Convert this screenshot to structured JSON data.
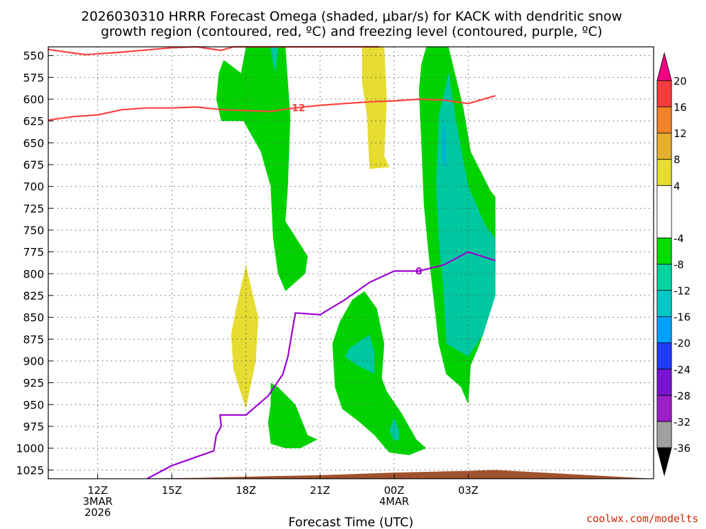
{
  "title_line1": "2026030310 HRRR Forecast Omega (shaded, μbar/s) for KACK with dendritic snow",
  "title_line2": "growth region (contoured, red, ºC) and freezing level (contoured, purple, ºC)",
  "credit": "coolwx.com/modelts",
  "chart_data": {
    "type": "contour",
    "title": "2026030310 HRRR Forecast Omega (shaded, μbar/s) for KACK with dendritic snow growth region (contoured, red, ºC) and freezing level (contoured, purple, ºC)",
    "xlabel": "Forecast Time (UTC)",
    "ylabel": "",
    "x_unit": "hours since 2026-03-03 10Z",
    "xlim": [
      10,
      34.5
    ],
    "y_unit": "hPa",
    "ylim": [
      1035,
      540
    ],
    "y_ticks": [
      550,
      575,
      600,
      625,
      650,
      675,
      700,
      725,
      750,
      775,
      800,
      825,
      850,
      875,
      900,
      925,
      950,
      975,
      1000,
      1025
    ],
    "y_tick_labels": [
      "550",
      "575",
      "600",
      "625",
      "650",
      "675",
      "700",
      "725",
      "750",
      "775",
      "800",
      "825",
      "850",
      "875",
      "900",
      "925",
      "950",
      "975",
      "1000",
      "1025"
    ],
    "x_ticks": [
      {
        "x": 12,
        "lines": [
          "12Z",
          "3MAR",
          "2026"
        ]
      },
      {
        "x": 15,
        "lines": [
          "15Z"
        ]
      },
      {
        "x": 18,
        "lines": [
          "18Z"
        ]
      },
      {
        "x": 21,
        "lines": [
          "21Z"
        ]
      },
      {
        "x": 24,
        "lines": [
          "00Z",
          "4MAR"
        ]
      },
      {
        "x": 27,
        "lines": [
          "03Z"
        ]
      }
    ],
    "grid": true,
    "colorbar": {
      "placement": "right",
      "levels": [
        -36,
        -32,
        -28,
        -24,
        -20,
        -16,
        -12,
        -8,
        -4,
        4,
        8,
        12,
        16,
        20
      ],
      "level_labels": [
        "-36",
        "-32",
        "-28",
        "-24",
        "-20",
        "-16",
        "-12",
        "-8",
        "-4",
        "4",
        "8",
        "12",
        "16",
        "20"
      ],
      "colors": [
        "#000000",
        "#a0a0a0",
        "#9b1ec8",
        "#7814d2",
        "#1e3cff",
        "#00a0ff",
        "#00dcb4",
        "#00d2a0",
        "#00dc00",
        "#ffffff",
        "#e6dc32",
        "#e6af2d",
        "#f08228",
        "#fa3c3c",
        "#f00082"
      ],
      "bands": [
        {
          "from": -36,
          "to": -32,
          "color": "#a0a0a0"
        },
        {
          "from": -32,
          "to": -28,
          "color": "#9b1ec8"
        },
        {
          "from": -28,
          "to": -24,
          "color": "#7814d2"
        },
        {
          "from": -24,
          "to": -20,
          "color": "#1e3cff"
        },
        {
          "from": -20,
          "to": -16,
          "color": "#00a0ff"
        },
        {
          "from": -16,
          "to": -12,
          "color": "#00c8c8"
        },
        {
          "from": -12,
          "to": -8,
          "color": "#00d2a0"
        },
        {
          "from": -8,
          "to": -4,
          "color": "#00dc00"
        },
        {
          "from": -4,
          "to": 4,
          "color": "#ffffff"
        },
        {
          "from": 4,
          "to": 8,
          "color": "#e6dc32"
        },
        {
          "from": 8,
          "to": 12,
          "color": "#e6af2d"
        },
        {
          "from": 12,
          "to": 16,
          "color": "#f08228"
        },
        {
          "from": 16,
          "to": 20,
          "color": "#fa3c3c"
        }
      ],
      "under_color": "#000000",
      "over_color": "#f00082"
    },
    "shaded_regions": [
      {
        "value_band": "-8 to -4",
        "color": "#00d200",
        "points": [
          [
            18.0,
            540
          ],
          [
            19.6,
            540
          ],
          [
            19.8,
            620
          ],
          [
            19.7,
            700
          ],
          [
            19.6,
            740
          ],
          [
            20.5,
            780
          ],
          [
            20.4,
            800
          ],
          [
            19.6,
            820
          ],
          [
            19.3,
            800
          ],
          [
            19.1,
            760
          ],
          [
            19.0,
            700
          ],
          [
            18.6,
            660
          ],
          [
            17.9,
            625
          ],
          [
            17.0,
            625
          ],
          [
            16.8,
            600
          ],
          [
            16.9,
            570
          ],
          [
            17.1,
            555
          ],
          [
            17.8,
            570
          ]
        ]
      },
      {
        "value_band": "-12 to -8",
        "color": "#00c8a0",
        "points": [
          [
            19.0,
            540
          ],
          [
            19.3,
            540
          ],
          [
            19.2,
            570
          ],
          [
            19.1,
            560
          ]
        ]
      },
      {
        "value_band": "-8 to -4",
        "color": "#00d200",
        "points": [
          [
            19.0,
            925
          ],
          [
            19.3,
            930
          ],
          [
            20.0,
            950
          ],
          [
            20.5,
            985
          ],
          [
            20.9,
            990
          ],
          [
            20.2,
            1000
          ],
          [
            19.6,
            1000
          ],
          [
            19.0,
            995
          ],
          [
            18.9,
            970
          ],
          [
            19.0,
            950
          ]
        ]
      },
      {
        "value_band": "-8 to -4",
        "color": "#00d200",
        "points": [
          [
            22.8,
            820
          ],
          [
            23.3,
            840
          ],
          [
            23.6,
            880
          ],
          [
            23.5,
            920
          ],
          [
            23.7,
            935
          ],
          [
            24.3,
            960
          ],
          [
            24.9,
            990
          ],
          [
            25.3,
            1000
          ],
          [
            24.6,
            1008
          ],
          [
            23.8,
            1005
          ],
          [
            23.2,
            985
          ],
          [
            22.6,
            970
          ],
          [
            21.9,
            955
          ],
          [
            21.6,
            930
          ],
          [
            21.5,
            880
          ],
          [
            21.8,
            855
          ],
          [
            22.3,
            830
          ]
        ]
      },
      {
        "value_band": "-12 to -8",
        "color": "#00c8a0",
        "points": [
          [
            22.2,
            885
          ],
          [
            23.0,
            870
          ],
          [
            23.2,
            890
          ],
          [
            23.2,
            915
          ],
          [
            22.5,
            905
          ],
          [
            22.0,
            895
          ]
        ]
      },
      {
        "value_band": "-12 to -8",
        "color": "#00c8a0",
        "points": [
          [
            24.0,
            965
          ],
          [
            24.2,
            980
          ],
          [
            24.2,
            990
          ],
          [
            24.0,
            992
          ],
          [
            23.8,
            980
          ]
        ]
      },
      {
        "value_band": "-8 to -4",
        "color": "#00d200",
        "points": [
          [
            25.3,
            540
          ],
          [
            26.2,
            540
          ],
          [
            26.8,
            610
          ],
          [
            27.1,
            660
          ],
          [
            27.9,
            705
          ],
          [
            28.1,
            712
          ],
          [
            28.1,
            800
          ],
          [
            27.6,
            870
          ],
          [
            27.4,
            885
          ],
          [
            27.1,
            905
          ],
          [
            27.0,
            950
          ],
          [
            26.7,
            930
          ],
          [
            26.1,
            915
          ],
          [
            25.8,
            880
          ],
          [
            25.6,
            830
          ],
          [
            25.4,
            780
          ],
          [
            25.2,
            720
          ],
          [
            25.1,
            650
          ],
          [
            25.0,
            590
          ],
          [
            25.1,
            560
          ]
        ]
      },
      {
        "value_band": "-12 to -8",
        "color": "#00c8a0",
        "points": [
          [
            25.8,
            620
          ],
          [
            26.2,
            570
          ],
          [
            26.6,
            640
          ],
          [
            27.0,
            700
          ],
          [
            27.7,
            745
          ],
          [
            28.1,
            760
          ],
          [
            28.1,
            825
          ],
          [
            27.6,
            870
          ],
          [
            27.0,
            895
          ],
          [
            26.1,
            880
          ],
          [
            26.0,
            820
          ],
          [
            25.8,
            760
          ],
          [
            25.7,
            700
          ]
        ]
      },
      {
        "value_band": "-16 to -12",
        "color": "#00b0d8",
        "points": [
          [
            26.0,
            620
          ],
          [
            26.1,
            650
          ],
          [
            26.1,
            680
          ],
          [
            25.95,
            670
          ],
          [
            25.95,
            640
          ]
        ]
      },
      {
        "value_band": "4 to 8",
        "color": "#e6dc32",
        "points": [
          [
            18.0,
            790
          ],
          [
            18.5,
            850
          ],
          [
            18.4,
            900
          ],
          [
            18.0,
            955
          ],
          [
            17.5,
            910
          ],
          [
            17.4,
            870
          ],
          [
            17.6,
            840
          ]
        ]
      },
      {
        "value_band": "4 to 8",
        "color": "#e6dc32",
        "points": [
          [
            22.7,
            540
          ],
          [
            23.6,
            540
          ],
          [
            23.7,
            600
          ],
          [
            23.6,
            665
          ],
          [
            23.8,
            678
          ],
          [
            23.0,
            680
          ],
          [
            22.9,
            620
          ],
          [
            22.7,
            580
          ]
        ]
      }
    ],
    "series": [
      {
        "kind": "isotherm",
        "label": "-12",
        "color": "#ff4040",
        "points": [
          [
            10.0,
            543
          ],
          [
            11.5,
            549
          ],
          [
            13.0,
            546
          ],
          [
            15.0,
            541
          ],
          [
            16.0,
            539
          ],
          [
            17.0,
            544
          ],
          [
            17.5,
            539
          ],
          [
            18.0,
            533
          ],
          [
            19.0,
            530
          ],
          [
            20.0,
            530
          ],
          [
            21.0,
            530
          ],
          [
            22.0,
            531
          ],
          [
            22.5,
            532
          ],
          [
            23.0,
            531
          ],
          [
            23.4,
            531
          ]
        ]
      },
      {
        "kind": "isotherm",
        "label": "-12",
        "color": "#ff4040",
        "points": [
          [
            10.0,
            624
          ],
          [
            11.0,
            620
          ],
          [
            12.0,
            618
          ],
          [
            13.0,
            612
          ],
          [
            14.0,
            610
          ],
          [
            15.0,
            610
          ],
          [
            16.0,
            609
          ],
          [
            17.0,
            612
          ],
          [
            18.0,
            613
          ],
          [
            19.0,
            614
          ],
          [
            20.0,
            610
          ],
          [
            21.0,
            607
          ],
          [
            22.0,
            605
          ],
          [
            23.0,
            603
          ],
          [
            24.0,
            602
          ],
          [
            25.0,
            600
          ],
          [
            26.0,
            601
          ],
          [
            27.0,
            605
          ],
          [
            28.1,
            596
          ]
        ]
      },
      {
        "kind": "freezing_level",
        "label": "0",
        "color": "#9b00d2",
        "points": [
          [
            14.0,
            1035
          ],
          [
            15.0,
            1020
          ],
          [
            16.0,
            1010
          ],
          [
            16.7,
            1003
          ],
          [
            16.8,
            985
          ],
          [
            17.0,
            975
          ],
          [
            16.95,
            962
          ],
          [
            18.0,
            962
          ],
          [
            18.9,
            940
          ],
          [
            19.5,
            915
          ],
          [
            19.7,
            895
          ],
          [
            20.0,
            845
          ],
          [
            21.0,
            847
          ],
          [
            22.0,
            830
          ],
          [
            23.0,
            810
          ],
          [
            24.0,
            797
          ],
          [
            25.0,
            797
          ],
          [
            26.0,
            790
          ],
          [
            27.0,
            775
          ],
          [
            28.1,
            785
          ]
        ]
      }
    ],
    "surface": {
      "label": "",
      "color": "#a0522d",
      "points": [
        [
          10.0,
          1037
        ],
        [
          13.0,
          1037
        ],
        [
          16.0,
          1034
        ],
        [
          19.0,
          1032
        ],
        [
          21.0,
          1031
        ],
        [
          24.0,
          1028
        ],
        [
          27.0,
          1026
        ],
        [
          28.1,
          1025
        ]
      ]
    }
  }
}
